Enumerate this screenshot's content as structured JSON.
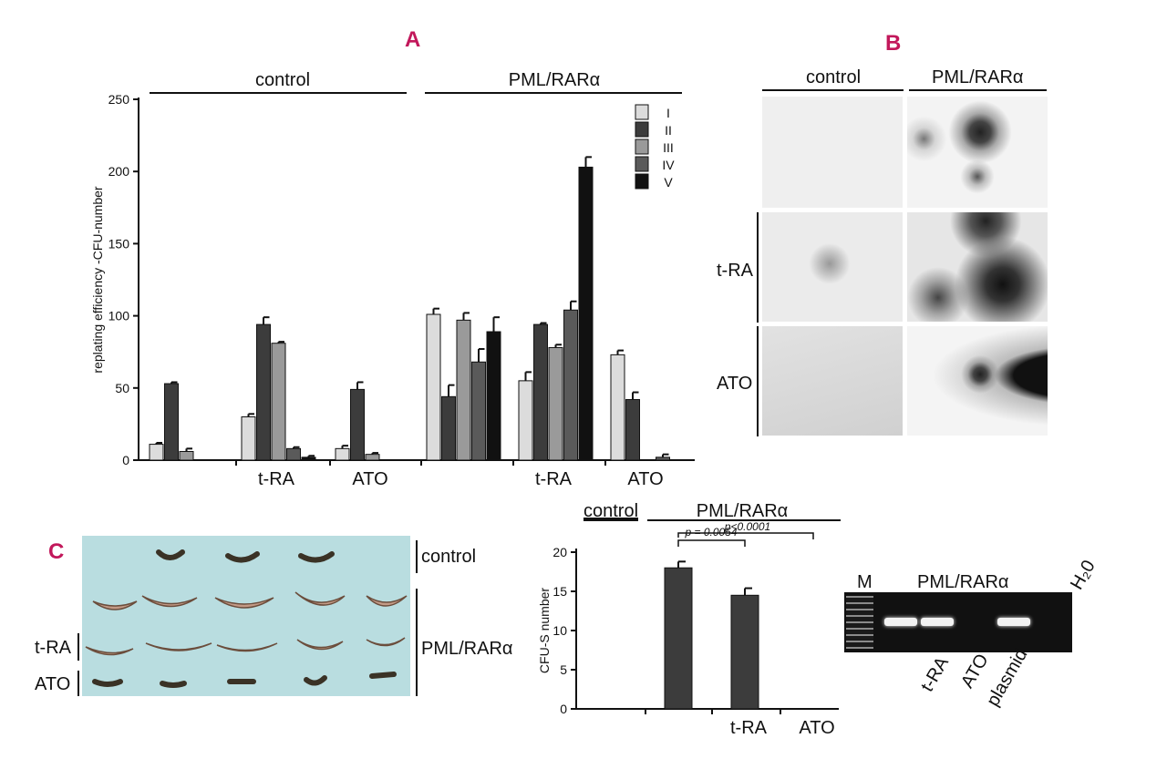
{
  "panels": {
    "a_letter": "A",
    "b_letter": "B",
    "c_letter": "C"
  },
  "chart_data": [
    {
      "type": "bar",
      "panel": "A",
      "ylabel": "replating efficiency -CFU-number",
      "ylim": [
        0,
        250
      ],
      "yticks": [
        "0",
        "50",
        "100",
        "150",
        "200",
        "250"
      ],
      "group_headers": [
        "control",
        "PML/RARα"
      ],
      "group_labels": [
        "",
        "t-RA",
        "ATO",
        "",
        "t-RA",
        "ATO"
      ],
      "legend": {
        "placement": "top-right",
        "entries": [
          "I",
          "II",
          "III",
          "IV",
          "V"
        ],
        "colors": [
          "#dcdcdc",
          "#3c3c3c",
          "#9a9a9a",
          "#5a5a5a",
          "#111111"
        ]
      },
      "series": [
        {
          "name": "I",
          "values": [
            11,
            30,
            8,
            101,
            55,
            73
          ],
          "errors": [
            1,
            2,
            2,
            4,
            6,
            3
          ]
        },
        {
          "name": "II",
          "values": [
            53,
            94,
            49,
            44,
            94,
            42
          ],
          "errors": [
            1,
            5,
            5,
            8,
            1,
            5
          ]
        },
        {
          "name": "III",
          "values": [
            6,
            81,
            4,
            97,
            78,
            0
          ],
          "errors": [
            2,
            1,
            1,
            5,
            2,
            0
          ]
        },
        {
          "name": "IV",
          "values": [
            0,
            8,
            0,
            68,
            104,
            2
          ],
          "errors": [
            0,
            1,
            0,
            9,
            6,
            2
          ]
        },
        {
          "name": "V",
          "values": [
            0,
            2,
            0,
            89,
            203,
            0
          ],
          "errors": [
            0,
            1,
            0,
            10,
            7,
            0
          ]
        }
      ]
    },
    {
      "type": "bar",
      "panel": "C",
      "ylabel": "CFU-S number",
      "ylim": [
        0,
        20
      ],
      "yticks": [
        "0",
        "5",
        "10",
        "15",
        "20"
      ],
      "header_control": "control",
      "header_pml": "PML/RARα",
      "categories": [
        "",
        "",
        "t-RA",
        "ATO"
      ],
      "values": [
        0,
        18,
        14.5,
        0
      ],
      "errors": [
        0,
        0.8,
        0.9,
        0
      ],
      "annotations": [
        "p = 0.0054",
        "p<0.0001"
      ]
    }
  ],
  "panel_b": {
    "col_labels": [
      "control",
      "PML/RARα"
    ],
    "row_labels": [
      "",
      "t-RA",
      "ATO"
    ]
  },
  "panel_c_photo": {
    "label_control": "control",
    "label_pml": "PML/RARα",
    "label_tra": "t-RA",
    "label_ato": "ATO"
  },
  "gel": {
    "label_m": "M",
    "label_pml": "PML/RARα",
    "label_h2o": "H₂0",
    "lane_labels": [
      "t-RA",
      "ATO",
      "plasmid"
    ]
  }
}
